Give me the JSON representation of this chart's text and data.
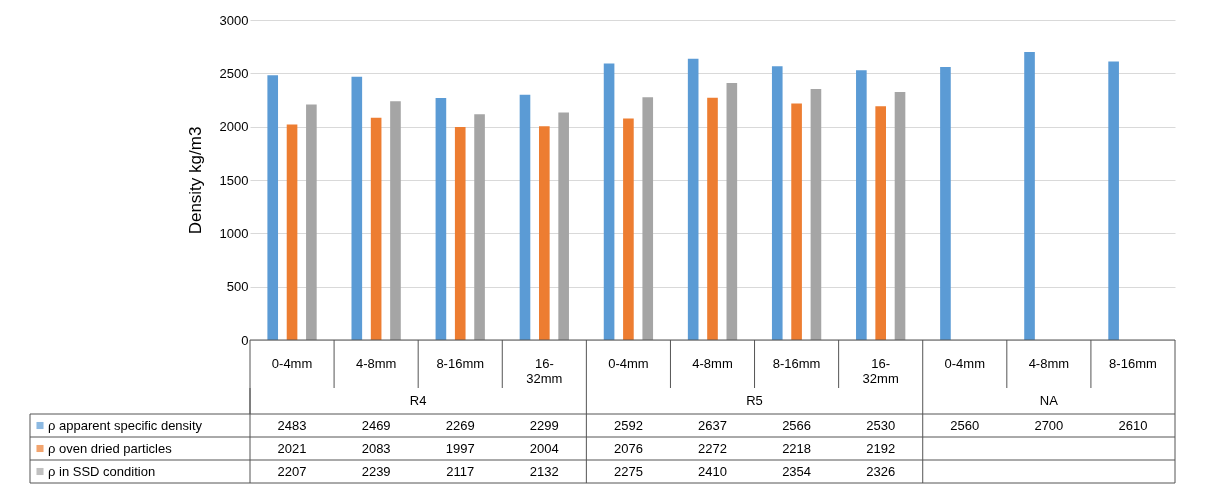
{
  "chart_data": {
    "type": "bar",
    "ylabel": "Density kg/m3",
    "categories": [
      "0-4mm",
      "4-8mm",
      "8-16mm",
      "16-32mm",
      "0-4mm",
      "4-8mm",
      "8-16mm",
      "16-32mm",
      "0-4mm",
      "4-8mm",
      "8-16mm"
    ],
    "annotations": [
      "R4",
      "R5",
      "NA"
    ],
    "series": [
      {
        "name": "ρ apparent specific density",
        "color": "#5b9bd5",
        "values": [
          2483,
          2469,
          2269,
          2299,
          2592,
          2637,
          2566,
          2530,
          2560,
          2700,
          2610
        ]
      },
      {
        "name": "ρ oven dried particles",
        "color": "#ed7d31",
        "values": [
          2021,
          2083,
          1997,
          2004,
          2076,
          2272,
          2218,
          2192,
          null,
          null,
          null
        ]
      },
      {
        "name": "ρ in SSD condition",
        "color": "#a5a5a5",
        "values": [
          2207,
          2239,
          2117,
          2132,
          2275,
          2410,
          2354,
          2326,
          null,
          null,
          null
        ]
      }
    ],
    "ylim": [
      0,
      3000
    ],
    "yticks": [
      0,
      500,
      1000,
      1500,
      2000,
      2500,
      3000
    ],
    "grid": "y",
    "legend": "bottom",
    "data_labels": true
  }
}
